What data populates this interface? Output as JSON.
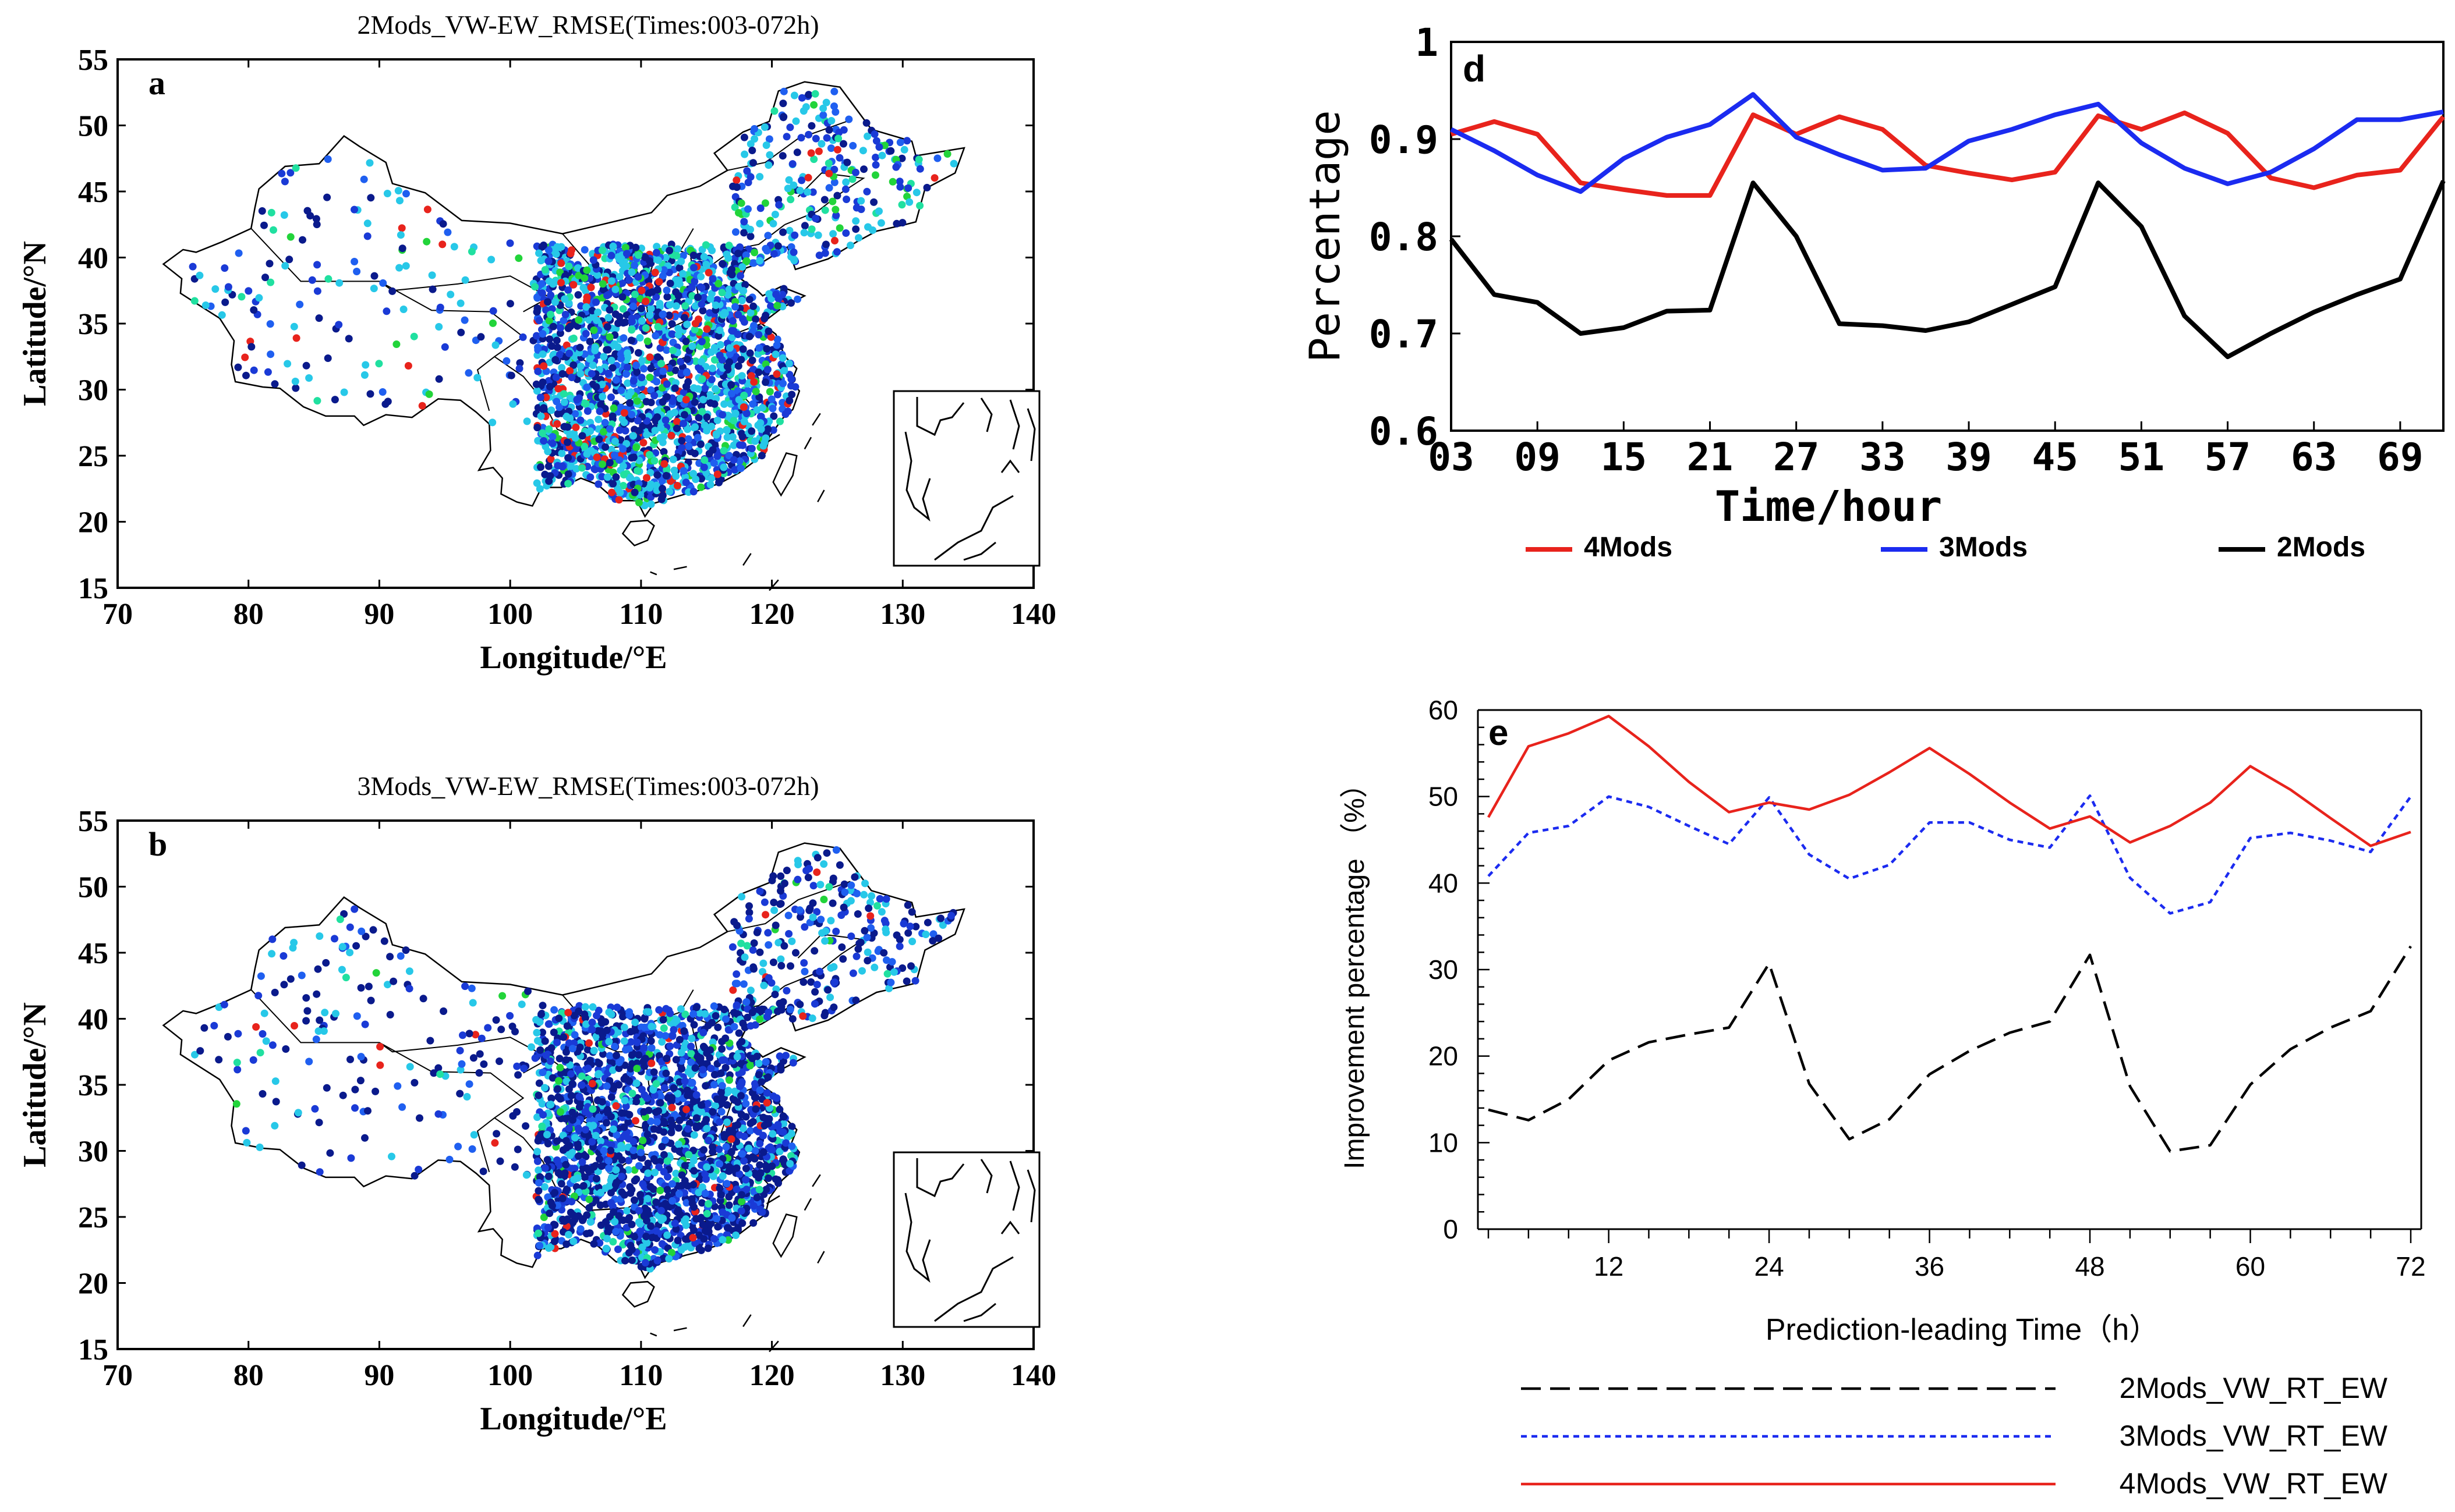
{
  "chart_data": [
    {
      "id": "a",
      "type": "scatter",
      "panel_label": "a",
      "title": "2Mods_VW-EW_RMSE(Times:003-072h)",
      "xlabel": "Longitude/°E",
      "ylabel": "Latitude/°N",
      "xlim": [
        70,
        140
      ],
      "ylim": [
        15,
        55
      ],
      "xticks": [
        70,
        80,
        90,
        100,
        110,
        120,
        130,
        140
      ],
      "yticks": [
        15,
        20,
        25,
        30,
        35,
        40,
        45,
        50,
        55
      ],
      "station_colors": [
        "#0a1a8c",
        "#1a3ad6",
        "#1f5ff0",
        "#27c8e8",
        "#20e0a0",
        "#22d43a",
        "#e8231c"
      ],
      "color_weights": [
        0.22,
        0.18,
        0.12,
        0.28,
        0.06,
        0.07,
        0.07
      ]
    },
    {
      "id": "b",
      "type": "scatter",
      "panel_label": "b",
      "title": "3Mods_VW-EW_RMSE(Times:003-072h)",
      "xlabel": "Longitude/°E",
      "ylabel": "Latitude/°N",
      "xlim": [
        70,
        140
      ],
      "ylim": [
        15,
        55
      ],
      "xticks": [
        70,
        80,
        90,
        100,
        110,
        120,
        130,
        140
      ],
      "yticks": [
        15,
        20,
        25,
        30,
        35,
        40,
        45,
        50,
        55
      ],
      "station_colors": [
        "#0a1a8c",
        "#1a3ad6",
        "#1f5ff0",
        "#27c8e8",
        "#20e0a0",
        "#22d43a",
        "#e8231c"
      ],
      "color_weights": [
        0.45,
        0.2,
        0.1,
        0.17,
        0.03,
        0.03,
        0.02
      ]
    },
    {
      "id": "d",
      "type": "line",
      "panel_label": "d",
      "xlabel": "Time/hour",
      "ylabel": "Percentage",
      "x": [
        3,
        6,
        9,
        12,
        15,
        18,
        21,
        24,
        27,
        30,
        33,
        36,
        39,
        42,
        45,
        48,
        51,
        54,
        57,
        60,
        63,
        66,
        69,
        72
      ],
      "xlim": [
        3,
        72
      ],
      "ylim": [
        0.6,
        1.0
      ],
      "xticks": [
        "03",
        "09",
        "15",
        "21",
        "27",
        "33",
        "39",
        "45",
        "51",
        "57",
        "63",
        "69"
      ],
      "xtick_values": [
        3,
        9,
        15,
        21,
        27,
        33,
        39,
        45,
        51,
        57,
        63,
        69
      ],
      "yticks": [
        "0.6",
        "0.7",
        "0.8",
        "0.9",
        "1"
      ],
      "ytick_values": [
        0.6,
        0.7,
        0.8,
        0.9,
        1.0
      ],
      "series": [
        {
          "name": "4Mods",
          "color": "#e8231c",
          "values": [
            0.905,
            0.918,
            0.905,
            0.855,
            0.848,
            0.842,
            0.842,
            0.925,
            0.905,
            0.923,
            0.91,
            0.873,
            0.865,
            0.858,
            0.866,
            0.924,
            0.91,
            0.927,
            0.906,
            0.86,
            0.85,
            0.863,
            0.868,
            0.923
          ]
        },
        {
          "name": "3Mods",
          "color": "#1b2bf0",
          "values": [
            0.91,
            0.888,
            0.863,
            0.846,
            0.88,
            0.902,
            0.915,
            0.946,
            0.902,
            0.884,
            0.868,
            0.87,
            0.898,
            0.91,
            0.925,
            0.936,
            0.896,
            0.87,
            0.854,
            0.866,
            0.89,
            0.92,
            0.92,
            0.928
          ]
        },
        {
          "name": "2Mods",
          "color": "#000000",
          "values": [
            0.797,
            0.74,
            0.732,
            0.7,
            0.706,
            0.723,
            0.724,
            0.855,
            0.8,
            0.71,
            0.708,
            0.703,
            0.712,
            0.73,
            0.748,
            0.855,
            0.81,
            0.718,
            0.676,
            0.7,
            0.722,
            0.74,
            0.756,
            0.857
          ]
        }
      ]
    },
    {
      "id": "e",
      "type": "line",
      "panel_label": "e",
      "xlabel": "Prediction-leading Time（h）",
      "ylabel": "Improvement percentage （%）",
      "x": [
        3,
        6,
        9,
        12,
        15,
        18,
        21,
        24,
        27,
        30,
        33,
        36,
        39,
        42,
        45,
        48,
        51,
        54,
        57,
        60,
        63,
        66,
        69,
        72
      ],
      "xlim": [
        3,
        72
      ],
      "ylim": [
        0,
        60
      ],
      "xticks": [
        "12",
        "24",
        "36",
        "48",
        "60",
        "72"
      ],
      "xtick_values": [
        12,
        24,
        36,
        48,
        60,
        72
      ],
      "yticks": [
        "0",
        "10",
        "20",
        "30",
        "40",
        "50",
        "60"
      ],
      "ytick_values": [
        0,
        10,
        20,
        30,
        40,
        50,
        60
      ],
      "series": [
        {
          "name": "2Mods_VW_RT_EW",
          "color": "#000000",
          "style": "dashed",
          "values": [
            13.8,
            12.6,
            15.0,
            19.5,
            21.6,
            22.5,
            23.3,
            30.7,
            16.8,
            10.4,
            12.7,
            17.9,
            20.6,
            22.7,
            24.0,
            31.7,
            16.5,
            9.0,
            9.7,
            16.7,
            20.8,
            23.3,
            25.2,
            32.7
          ]
        },
        {
          "name": "3Mods_VW_RT_EW",
          "color": "#1b2bf0",
          "style": "dotted",
          "values": [
            40.8,
            45.8,
            46.6,
            50.0,
            48.8,
            46.6,
            44.5,
            49.9,
            43.3,
            40.5,
            42.1,
            47.0,
            47.0,
            45.0,
            44.1,
            50.1,
            40.6,
            36.5,
            37.8,
            45.2,
            45.8,
            44.9,
            43.6,
            50.0
          ]
        },
        {
          "name": "4Mods_VW_RT_EW",
          "color": "#e8231c",
          "style": "solid",
          "values": [
            47.6,
            55.8,
            57.3,
            59.3,
            55.8,
            51.7,
            48.2,
            49.3,
            48.5,
            50.2,
            52.8,
            55.6,
            52.6,
            49.3,
            46.3,
            47.7,
            44.7,
            46.6,
            49.3,
            53.5,
            50.8,
            47.5,
            44.3,
            45.9
          ]
        }
      ]
    }
  ]
}
